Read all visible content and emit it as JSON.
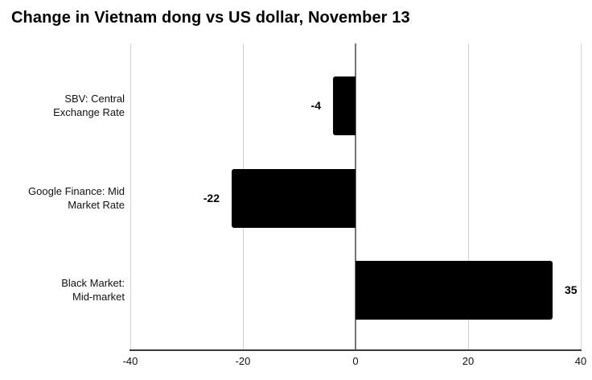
{
  "chart_data": {
    "type": "bar",
    "orientation": "horizontal",
    "title": "Change in Vietnam dong vs US dollar, November 13",
    "categories": [
      "SBV: Central\nExchange Rate",
      "Google Finance: Mid\nMarket Rate",
      "Black Market:\nMid-market"
    ],
    "values": [
      -4,
      -22,
      35
    ],
    "value_labels": [
      "-4",
      "-22",
      "35"
    ],
    "xlim": [
      -40,
      40
    ],
    "xticks": [
      -40,
      -20,
      0,
      20,
      40
    ],
    "xtick_labels": [
      "-40",
      "-20",
      "0",
      "20",
      "40"
    ],
    "grid": true,
    "legend": "none",
    "colors": {
      "bar": "#000000",
      "gridline": "#d2d2d2",
      "zero_line": "#757575",
      "axis_line": "#3b3b3b",
      "text": "#111111",
      "background": "#ffffff"
    }
  }
}
